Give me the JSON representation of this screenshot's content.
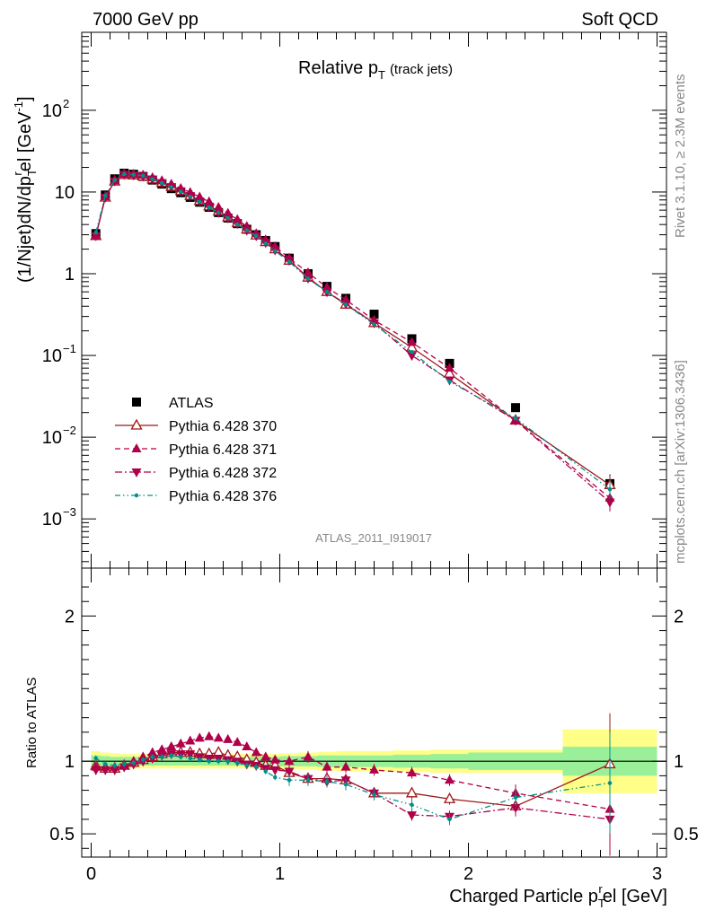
{
  "header": {
    "left_label": "7000 GeV pp",
    "right_label": "Soft QCD"
  },
  "side_labels": {
    "rivet": "Rivet 3.1.10, ≥ 2.3M events",
    "mcplots": "mcplots.cern.ch [arXiv:1306.3436]"
  },
  "watermark": "ATLAS_2011_I919017",
  "chart_data": [
    {
      "type": "scatter",
      "title_main": "Relative p",
      "title_sub": "T",
      "title_suffix": "(track jets)",
      "ylabel": "(1/Njet)dN/dp",
      "ylabel_sub": "T",
      "ylabel_sup": "r",
      "ylabel_tail": "el [GeV",
      "ylabel_tail_sup": "-1",
      "ylabel_close": "]",
      "yscale": "log",
      "xlim": [
        -0.05,
        3.05
      ],
      "ylim": [
        0.00025,
        900
      ],
      "yticks": [
        {
          "v": 0.001,
          "base": "10",
          "exp": "−3"
        },
        {
          "v": 0.01,
          "base": "10",
          "exp": "−2"
        },
        {
          "v": 0.1,
          "base": "10",
          "exp": "−1"
        },
        {
          "v": 1,
          "base": "1",
          "exp": ""
        },
        {
          "v": 10,
          "base": "10",
          "exp": ""
        },
        {
          "v": 100,
          "base": "10",
          "exp": "2"
        }
      ],
      "legend_position": "bottom-left",
      "x": [
        0.025,
        0.075,
        0.125,
        0.175,
        0.225,
        0.275,
        0.325,
        0.375,
        0.425,
        0.475,
        0.525,
        0.575,
        0.625,
        0.675,
        0.725,
        0.775,
        0.825,
        0.875,
        0.925,
        0.975,
        1.05,
        1.15,
        1.25,
        1.35,
        1.5,
        1.7,
        1.9,
        2.25,
        2.75
      ],
      "series": [
        {
          "name": "ATLAS",
          "color": "#000000",
          "marker": "square",
          "values": [
            3.1,
            9.2,
            14.5,
            17.0,
            16.5,
            15.5,
            14.0,
            12.5,
            11.0,
            9.8,
            8.6,
            7.5,
            6.5,
            5.6,
            4.8,
            4.1,
            3.5,
            3.0,
            2.55,
            2.15,
            1.55,
            1.0,
            0.7,
            0.5,
            0.32,
            0.16,
            0.08,
            0.023,
            0.0027
          ]
        },
        {
          "name": "Pythia 6.428 370",
          "color": "#a01818",
          "marker": "triangle-open",
          "line": "solid",
          "values": [
            2.9,
            8.6,
            13.5,
            16.2,
            16.0,
            15.5,
            14.3,
            13.0,
            11.6,
            10.3,
            9.0,
            7.8,
            6.7,
            5.8,
            4.9,
            4.2,
            3.5,
            2.95,
            2.45,
            2.0,
            1.45,
            0.9,
            0.6,
            0.42,
            0.25,
            0.125,
            0.06,
            0.016,
            0.0026
          ]
        },
        {
          "name": "Pythia 6.428 371",
          "color": "#b0004a",
          "marker": "triangle-up",
          "line": "dashed",
          "values": [
            2.9,
            8.8,
            13.8,
            16.5,
            16.4,
            16.1,
            15.0,
            13.8,
            12.5,
            11.1,
            9.9,
            8.7,
            7.6,
            6.5,
            5.5,
            4.6,
            3.8,
            3.1,
            2.6,
            2.15,
            1.55,
            1.03,
            0.68,
            0.48,
            0.27,
            0.145,
            0.07,
            0.016,
            0.0018
          ]
        },
        {
          "name": "Pythia 6.428 372",
          "color": "#b0004a",
          "marker": "triangle-down",
          "line": "dashdot",
          "values": [
            2.9,
            8.6,
            13.6,
            16.4,
            16.1,
            15.6,
            14.3,
            13.0,
            11.6,
            10.3,
            9.0,
            7.7,
            6.6,
            5.6,
            4.8,
            4.1,
            3.4,
            2.9,
            2.4,
            1.95,
            1.45,
            0.88,
            0.6,
            0.43,
            0.25,
            0.1,
            0.05,
            0.016,
            0.0016
          ]
        },
        {
          "name": "Pythia 6.428 376",
          "color": "#00908a",
          "marker": "dot",
          "line": "dashdotdot",
          "values": [
            3.2,
            9.0,
            14.0,
            16.6,
            16.3,
            15.8,
            14.4,
            12.9,
            11.5,
            10.1,
            8.8,
            7.6,
            6.5,
            5.6,
            4.8,
            4.0,
            3.4,
            2.9,
            2.35,
            1.9,
            1.4,
            0.87,
            0.6,
            0.42,
            0.24,
            0.11,
            0.048,
            0.017,
            0.0023
          ]
        }
      ]
    },
    {
      "type": "scatter",
      "ylabel": "Ratio to ATLAS",
      "xlabel": "Charged Particle p",
      "xlabel_sub": "T",
      "xlabel_sup": "r",
      "xlabel_tail": "el [GeV]",
      "xlim": [
        -0.05,
        3.05
      ],
      "ylim": [
        0.34,
        2.33
      ],
      "xticks": [
        {
          "v": 0,
          "label": "0"
        },
        {
          "v": 1,
          "label": "1"
        },
        {
          "v": 2,
          "label": "2"
        },
        {
          "v": 3,
          "label": "3"
        }
      ],
      "yticks": [
        {
          "v": 0.5,
          "label": "0.5"
        },
        {
          "v": 1,
          "label": "1"
        },
        {
          "v": 2,
          "label": "2"
        }
      ],
      "reference_line": 1,
      "band_bins": [
        [
          0,
          0.05
        ],
        [
          0.05,
          0.1
        ],
        [
          0.1,
          0.15
        ],
        [
          0.15,
          0.2
        ],
        [
          0.2,
          0.25
        ],
        [
          0.25,
          0.3
        ],
        [
          0.3,
          0.35
        ],
        [
          0.35,
          0.4
        ],
        [
          0.4,
          0.45
        ],
        [
          0.45,
          0.5
        ],
        [
          0.5,
          0.55
        ],
        [
          0.55,
          0.6
        ],
        [
          0.6,
          0.65
        ],
        [
          0.65,
          0.7
        ],
        [
          0.7,
          0.75
        ],
        [
          0.75,
          0.8
        ],
        [
          0.8,
          0.85
        ],
        [
          0.85,
          0.9
        ],
        [
          0.9,
          0.95
        ],
        [
          0.95,
          1.0
        ],
        [
          1.0,
          1.1
        ],
        [
          1.1,
          1.2
        ],
        [
          1.2,
          1.3
        ],
        [
          1.3,
          1.4
        ],
        [
          1.4,
          1.6
        ],
        [
          1.6,
          1.8
        ],
        [
          1.8,
          2.0
        ],
        [
          2.0,
          2.5
        ],
        [
          2.5,
          3.0
        ]
      ],
      "band_stat": [
        0.04,
        0.035,
        0.03,
        0.03,
        0.03,
        0.03,
        0.03,
        0.03,
        0.03,
        0.03,
        0.03,
        0.03,
        0.03,
        0.03,
        0.03,
        0.03,
        0.03,
        0.03,
        0.03,
        0.03,
        0.035,
        0.035,
        0.04,
        0.04,
        0.04,
        0.045,
        0.05,
        0.06,
        0.1
      ],
      "band_total": [
        0.07,
        0.06,
        0.055,
        0.05,
        0.05,
        0.05,
        0.05,
        0.05,
        0.05,
        0.05,
        0.05,
        0.05,
        0.05,
        0.05,
        0.05,
        0.05,
        0.05,
        0.05,
        0.05,
        0.05,
        0.055,
        0.06,
        0.065,
        0.07,
        0.07,
        0.075,
        0.08,
        0.08,
        0.22
      ],
      "x": [
        0.025,
        0.075,
        0.125,
        0.175,
        0.225,
        0.275,
        0.325,
        0.375,
        0.425,
        0.475,
        0.525,
        0.575,
        0.625,
        0.675,
        0.725,
        0.775,
        0.825,
        0.875,
        0.925,
        0.975,
        1.05,
        1.15,
        1.25,
        1.35,
        1.5,
        1.7,
        1.9,
        2.25,
        2.75
      ],
      "series": [
        {
          "name": "Pythia 6.428 370",
          "color": "#a01818",
          "marker": "triangle-open",
          "line": "solid",
          "values": [
            0.97,
            0.95,
            0.95,
            0.97,
            0.99,
            1.01,
            1.03,
            1.05,
            1.06,
            1.06,
            1.06,
            1.05,
            1.05,
            1.06,
            1.04,
            1.03,
            1.01,
            0.99,
            0.97,
            0.97,
            0.92,
            0.88,
            0.88,
            0.87,
            0.78,
            0.78,
            0.74,
            0.69,
            0.98
          ]
        },
        {
          "name": "Pythia 6.428 371",
          "color": "#b0004a",
          "marker": "triangle-up",
          "line": "dashed",
          "values": [
            0.96,
            0.96,
            0.96,
            0.97,
            1.0,
            1.03,
            1.06,
            1.08,
            1.1,
            1.12,
            1.14,
            1.16,
            1.17,
            1.16,
            1.15,
            1.13,
            1.1,
            1.06,
            1.03,
            1.01,
            1.0,
            1.03,
            0.96,
            0.96,
            0.94,
            0.92,
            0.87,
            0.78,
            0.67
          ]
        },
        {
          "name": "Pythia 6.428 372",
          "color": "#b0004a",
          "marker": "triangle-down",
          "line": "dashdot",
          "values": [
            0.94,
            0.94,
            0.94,
            0.96,
            0.98,
            1.0,
            1.02,
            1.04,
            1.05,
            1.05,
            1.05,
            1.03,
            1.02,
            1.02,
            1.01,
            1.0,
            0.98,
            0.97,
            0.95,
            0.94,
            0.93,
            0.88,
            0.86,
            0.87,
            0.78,
            0.63,
            0.62,
            0.68,
            0.6
          ]
        },
        {
          "name": "Pythia 6.428 376",
          "color": "#00908a",
          "marker": "dot",
          "line": "dashdotdot",
          "values": [
            1.02,
            0.98,
            0.97,
            0.98,
            0.99,
            1.01,
            1.03,
            1.03,
            1.04,
            1.03,
            1.02,
            1.01,
            1.0,
            1.0,
            1.0,
            0.99,
            0.97,
            0.96,
            0.93,
            0.89,
            0.87,
            0.87,
            0.86,
            0.84,
            0.77,
            0.7,
            0.6,
            0.75,
            0.85
          ]
        }
      ]
    }
  ]
}
